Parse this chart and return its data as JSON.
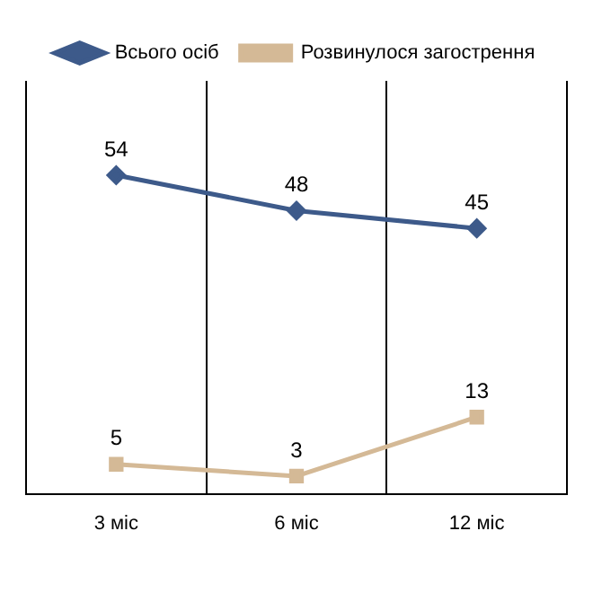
{
  "chart_data": {
    "type": "line",
    "categories": [
      "3 міс",
      "6 міс",
      "12 міс"
    ],
    "series": [
      {
        "name": "Всього осіб",
        "color": "#3d5a8a",
        "values": [
          54,
          48,
          45
        ],
        "marker": "diamond"
      },
      {
        "name": "Розвинулося загострення",
        "color": "#d4b996",
        "values": [
          5,
          3,
          13
        ],
        "marker": "square"
      }
    ],
    "ylim": [
      0,
      70
    ],
    "tick_labels": "x",
    "grid": "x",
    "legend": "top",
    "data_labels": true
  }
}
